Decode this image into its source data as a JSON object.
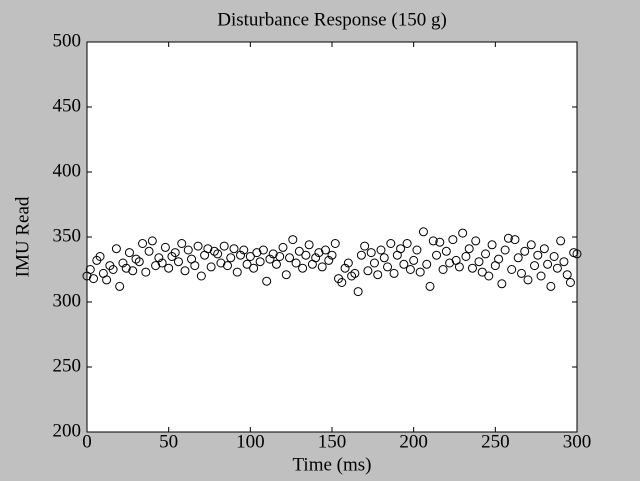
{
  "chart_data": {
    "type": "scatter",
    "title": "Disturbance Response (150 g)",
    "x_label": "Time (ms)",
    "y_label": "IMU Read",
    "color": "#000000",
    "x": [
      0,
      2,
      4,
      6,
      8,
      10,
      12,
      14,
      16,
      18,
      20,
      22,
      24,
      26,
      28,
      30,
      32,
      34,
      36,
      38,
      40,
      42,
      44,
      46,
      48,
      50,
      52,
      54,
      56,
      58,
      60,
      62,
      64,
      66,
      68,
      70,
      72,
      74,
      76,
      78,
      80,
      82,
      84,
      86,
      88,
      90,
      92,
      94,
      96,
      98,
      100,
      102,
      104,
      106,
      108,
      110,
      112,
      114,
      116,
      118,
      120,
      122,
      124,
      126,
      128,
      130,
      132,
      134,
      136,
      138,
      140,
      142,
      144,
      146,
      148,
      150,
      152,
      154,
      156,
      158,
      160,
      162,
      164,
      166,
      168,
      170,
      172,
      174,
      176,
      178,
      180,
      182,
      184,
      186,
      188,
      190,
      192,
      194,
      196,
      198,
      200,
      202,
      204,
      206,
      208,
      210,
      212,
      214,
      216,
      218,
      220,
      222,
      224,
      226,
      228,
      230,
      232,
      234,
      236,
      238,
      240,
      242,
      244,
      246,
      248,
      250,
      252,
      254,
      256,
      258,
      260,
      262,
      264,
      266,
      268,
      270,
      272,
      274,
      276,
      278,
      280,
      282,
      284,
      286,
      288,
      290,
      292,
      294,
      296,
      298,
      300
    ],
    "values": [
      320,
      325,
      318,
      332,
      335,
      322,
      317,
      328,
      325,
      341,
      312,
      330,
      326,
      338,
      324,
      333,
      331,
      345,
      323,
      339,
      347,
      328,
      334,
      330,
      342,
      326,
      335,
      338,
      331,
      345,
      324,
      340,
      333,
      328,
      343,
      320,
      336,
      341,
      327,
      339,
      337,
      330,
      343,
      328,
      334,
      341,
      323,
      336,
      340,
      329,
      335,
      326,
      338,
      331,
      340,
      316,
      333,
      337,
      329,
      335,
      342,
      321,
      334,
      348,
      330,
      339,
      326,
      336,
      344,
      329,
      334,
      338,
      327,
      340,
      332,
      336,
      345,
      318,
      315,
      326,
      330,
      320,
      322,
      308,
      336,
      343,
      324,
      338,
      330,
      321,
      340,
      334,
      327,
      345,
      322,
      336,
      341,
      329,
      345,
      325,
      332,
      340,
      323,
      354,
      329,
      312,
      347,
      336,
      346,
      325,
      339,
      330,
      348,
      332,
      327,
      353,
      335,
      341,
      326,
      347,
      331,
      323,
      337,
      320,
      344,
      328,
      333,
      314,
      340,
      349,
      325,
      348,
      334,
      322,
      339,
      317,
      344,
      328,
      336,
      320,
      341,
      329,
      312,
      335,
      326,
      347,
      331,
      321,
      315,
      338,
      337
    ],
    "xlim": [
      0,
      300
    ],
    "xticks": [
      0,
      50,
      100,
      150,
      200,
      250,
      300
    ],
    "ylim": [
      200,
      500
    ],
    "yticks": [
      200,
      250,
      300,
      350,
      400,
      450,
      500
    ]
  }
}
